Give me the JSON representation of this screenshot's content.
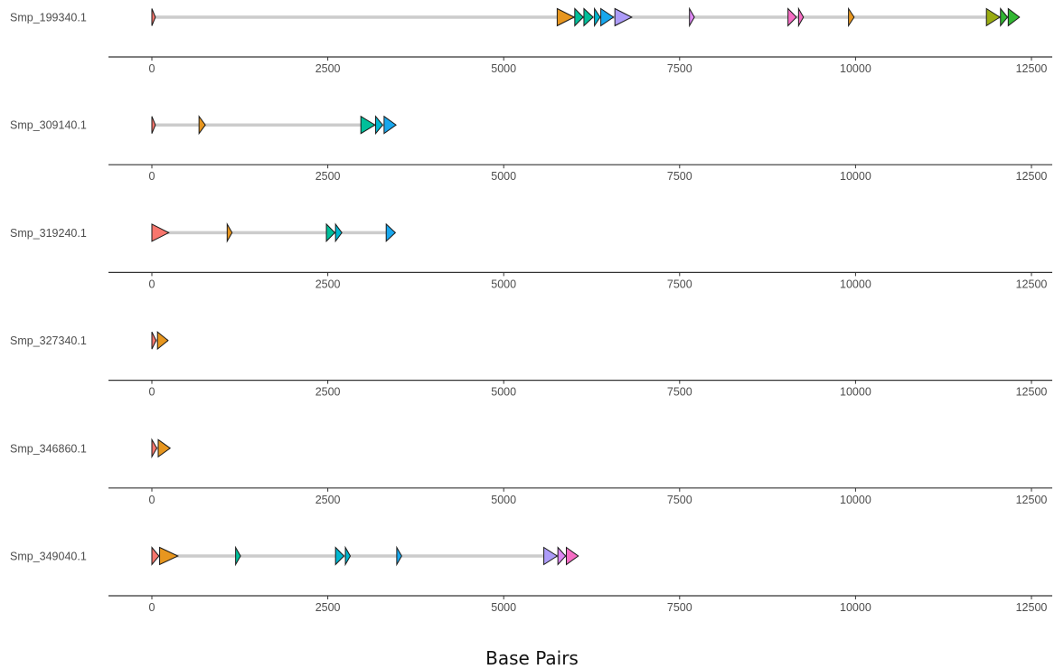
{
  "chart_data": {
    "type": "gene-arrow-map",
    "xlabel": "Base Pairs",
    "xlim": [
      0,
      12500
    ],
    "xticks": [
      0,
      2500,
      5000,
      7500,
      10000,
      12500
    ],
    "domain_colors": {
      "salmon": "#f8766d",
      "orange": "#e7961f",
      "olive": "#9aac12",
      "green": "#32b733",
      "teal": "#00bf9a",
      "cyan": "#00b7d0",
      "blue": "#18a7ed",
      "lavender": "#ad9cf9",
      "violet": "#dd87f3",
      "pink": "#f66dc4"
    },
    "genes": [
      {
        "name": "Smp_199340.1",
        "length": 12300,
        "features": [
          {
            "start": 0,
            "end": 50,
            "color": "salmon"
          },
          {
            "start": 5760,
            "end": 6000,
            "color": "orange"
          },
          {
            "start": 6010,
            "end": 6130,
            "color": "teal"
          },
          {
            "start": 6140,
            "end": 6270,
            "color": "teal"
          },
          {
            "start": 6290,
            "end": 6370,
            "color": "cyan"
          },
          {
            "start": 6380,
            "end": 6560,
            "color": "blue"
          },
          {
            "start": 6580,
            "end": 6820,
            "color": "lavender"
          },
          {
            "start": 7640,
            "end": 7710,
            "color": "violet"
          },
          {
            "start": 9040,
            "end": 9160,
            "color": "pink"
          },
          {
            "start": 9190,
            "end": 9260,
            "color": "pink"
          },
          {
            "start": 9900,
            "end": 9980,
            "color": "orange"
          },
          {
            "start": 11860,
            "end": 12050,
            "color": "olive"
          },
          {
            "start": 12060,
            "end": 12160,
            "color": "green"
          },
          {
            "start": 12170,
            "end": 12330,
            "color": "green"
          }
        ]
      },
      {
        "name": "Smp_309140.1",
        "length": 3460,
        "features": [
          {
            "start": 0,
            "end": 50,
            "color": "salmon"
          },
          {
            "start": 670,
            "end": 760,
            "color": "orange"
          },
          {
            "start": 2970,
            "end": 3170,
            "color": "teal"
          },
          {
            "start": 3180,
            "end": 3280,
            "color": "cyan"
          },
          {
            "start": 3300,
            "end": 3470,
            "color": "blue"
          }
        ]
      },
      {
        "name": "Smp_319240.1",
        "length": 3460,
        "features": [
          {
            "start": 0,
            "end": 240,
            "color": "salmon"
          },
          {
            "start": 1070,
            "end": 1140,
            "color": "orange"
          },
          {
            "start": 2480,
            "end": 2600,
            "color": "teal"
          },
          {
            "start": 2610,
            "end": 2700,
            "color": "cyan"
          },
          {
            "start": 3330,
            "end": 3460,
            "color": "blue"
          }
        ]
      },
      {
        "name": "Smp_327340.1",
        "length": 230,
        "features": [
          {
            "start": 0,
            "end": 60,
            "color": "salmon"
          },
          {
            "start": 80,
            "end": 230,
            "color": "orange"
          }
        ]
      },
      {
        "name": "Smp_346860.1",
        "length": 250,
        "features": [
          {
            "start": 0,
            "end": 70,
            "color": "salmon"
          },
          {
            "start": 90,
            "end": 260,
            "color": "orange"
          }
        ]
      },
      {
        "name": "Smp_349040.1",
        "length": 6000,
        "features": [
          {
            "start": 0,
            "end": 100,
            "color": "salmon"
          },
          {
            "start": 110,
            "end": 370,
            "color": "orange"
          },
          {
            "start": 1190,
            "end": 1260,
            "color": "teal"
          },
          {
            "start": 2610,
            "end": 2730,
            "color": "cyan"
          },
          {
            "start": 2750,
            "end": 2820,
            "color": "cyan"
          },
          {
            "start": 3480,
            "end": 3550,
            "color": "blue"
          },
          {
            "start": 5570,
            "end": 5760,
            "color": "lavender"
          },
          {
            "start": 5770,
            "end": 5880,
            "color": "violet"
          },
          {
            "start": 5890,
            "end": 6060,
            "color": "pink"
          }
        ]
      }
    ]
  }
}
